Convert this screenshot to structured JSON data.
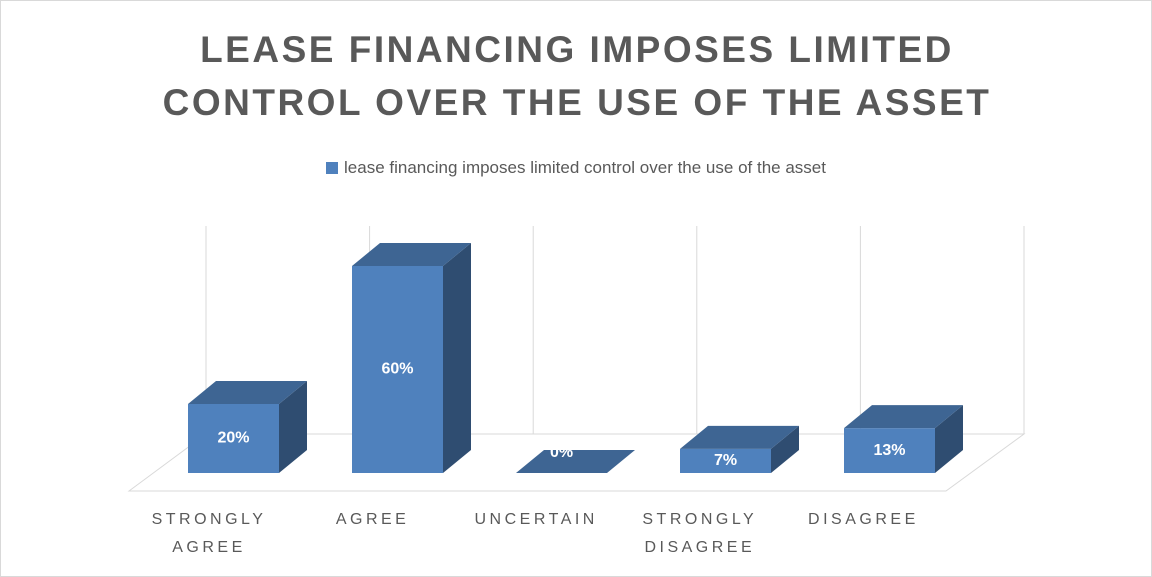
{
  "chart_data": {
    "type": "bar3d",
    "title": "LEASE FINANCING IMPOSES LIMITED CONTROL OVER THE USE OF THE ASSET",
    "categories": [
      "STRONGLY AGREE",
      "AGREE",
      "UNCERTAIN",
      "STRONGLY DISAGREE",
      "DISAGREE"
    ],
    "series": [
      {
        "name": "lease financing imposes limited control over the use of the asset",
        "color": "#4f81bd",
        "values": [
          20,
          60,
          0,
          7,
          13
        ],
        "value_labels": [
          "20%",
          "60%",
          "0%",
          "7%",
          "13%"
        ]
      }
    ],
    "legend": "top"
  }
}
